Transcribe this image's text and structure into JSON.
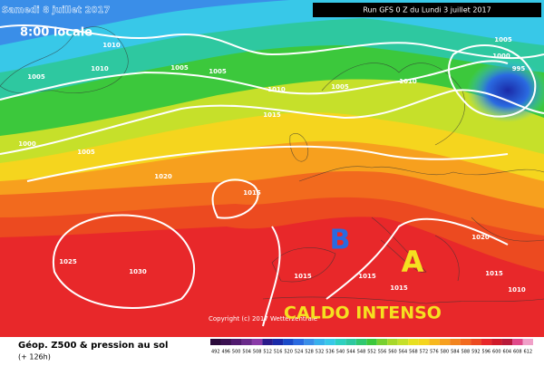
{
  "header": {
    "date": "Samedi 8 juillet 2017",
    "time": "8:00 locale",
    "run": "Run GFS 0 Z du Lundi 3 juillet 2017"
  },
  "isobar_labels": [
    1010,
    1010,
    1005,
    1005,
    1000,
    1005,
    1005,
    1010,
    1005,
    1005,
    1010,
    1000,
    995,
    1015,
    1020,
    1015,
    1025,
    1030,
    1015,
    1015,
    1015,
    1020,
    1015,
    1010
  ],
  "markers": {
    "low": "B",
    "high": "A",
    "caption": "CALDO INTENSO"
  },
  "copyright": "Copyright (c) 2017 Wetterzentrale",
  "footer": {
    "title": "Géop. Z500 & pression au sol",
    "subtitle": "(+ 126h)"
  },
  "scale": [
    {
      "label": 492,
      "color": "#2a0a3a"
    },
    {
      "label": 496,
      "color": "#3a1050"
    },
    {
      "label": 500,
      "color": "#501a6e"
    },
    {
      "label": 504,
      "color": "#6a2a8a"
    },
    {
      "label": 508,
      "color": "#8a3aa8"
    },
    {
      "label": 512,
      "color": "#2a1a8a"
    },
    {
      "label": 516,
      "color": "#1a2aa8"
    },
    {
      "label": 520,
      "color": "#1a4ac8"
    },
    {
      "label": 524,
      "color": "#2a6ae0"
    },
    {
      "label": 528,
      "color": "#3a8ee8"
    },
    {
      "label": 532,
      "color": "#38b0ec"
    },
    {
      "label": 536,
      "color": "#38c8e8"
    },
    {
      "label": 540,
      "color": "#2ed0c0"
    },
    {
      "label": 544,
      "color": "#2ec8a0"
    },
    {
      "label": 548,
      "color": "#30c870"
    },
    {
      "label": 552,
      "color": "#3cc83c"
    },
    {
      "label": 556,
      "color": "#78d030"
    },
    {
      "label": 560,
      "color": "#a8d82a"
    },
    {
      "label": 564,
      "color": "#c6e02a"
    },
    {
      "label": 568,
      "color": "#e8e020"
    },
    {
      "label": 572,
      "color": "#f5d51e"
    },
    {
      "label": 576,
      "color": "#f7b81e"
    },
    {
      "label": 580,
      "color": "#f7a01e"
    },
    {
      "label": 584,
      "color": "#f2841e"
    },
    {
      "label": 588,
      "color": "#f26a1e"
    },
    {
      "label": 592,
      "color": "#ec4a20"
    },
    {
      "label": 596,
      "color": "#e8282a"
    },
    {
      "label": 600,
      "color": "#d01a2a"
    },
    {
      "label": 604,
      "color": "#b81a3a"
    },
    {
      "label": 608,
      "color": "#e04a8a"
    },
    {
      "label": 612,
      "color": "#f0a0c8"
    }
  ]
}
